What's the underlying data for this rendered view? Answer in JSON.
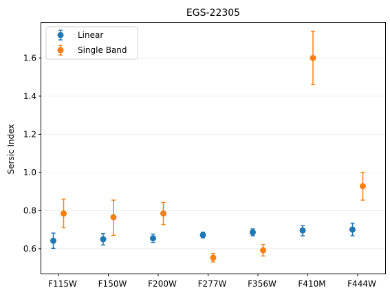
{
  "chart_data": {
    "type": "scatter",
    "title": "EGS-22305",
    "xlabel": "",
    "ylabel": "Sersic Index",
    "categories": [
      "F115W",
      "F150W",
      "F200W",
      "F277W",
      "F356W",
      "F410M",
      "F444W"
    ],
    "yticks": [
      "0.6",
      "0.8",
      "1.0",
      "1.2",
      "1.4",
      "1.6"
    ],
    "ytick_values": [
      0.6,
      0.8,
      1.0,
      1.2,
      1.4,
      1.6
    ],
    "ylim": [
      0.47,
      1.785
    ],
    "grid": "horizontal",
    "legend_position": "top-left",
    "series": [
      {
        "name": "Linear",
        "color": "#1f77b4",
        "values": [
          0.642,
          0.65,
          0.655,
          0.672,
          0.686,
          0.696,
          0.701
        ],
        "err_low": [
          0.04,
          0.03,
          0.022,
          0.015,
          0.018,
          0.028,
          0.033
        ],
        "err_high": [
          0.04,
          0.03,
          0.022,
          0.015,
          0.018,
          0.025,
          0.033
        ]
      },
      {
        "name": "Single Band",
        "color": "#ff7f0e",
        "values": [
          0.785,
          0.765,
          0.785,
          0.553,
          0.592,
          1.6,
          0.928
        ],
        "err_low": [
          0.075,
          0.095,
          0.058,
          0.022,
          0.03,
          0.14,
          0.073
        ],
        "err_high": [
          0.075,
          0.09,
          0.058,
          0.022,
          0.03,
          0.14,
          0.073
        ]
      }
    ]
  }
}
